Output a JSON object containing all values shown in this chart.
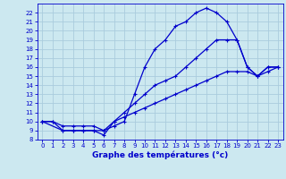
{
  "xlabel": "Graphe des températures (°c)",
  "bg_color": "#cce8f0",
  "grid_color": "#aaccdd",
  "line_color": "#0000cc",
  "xlim": [
    -0.5,
    23.5
  ],
  "ylim": [
    8,
    23
  ],
  "xticks": [
    0,
    1,
    2,
    3,
    4,
    5,
    6,
    7,
    8,
    9,
    10,
    11,
    12,
    13,
    14,
    15,
    16,
    17,
    18,
    19,
    20,
    21,
    22,
    23
  ],
  "yticks": [
    8,
    9,
    10,
    11,
    12,
    13,
    14,
    15,
    16,
    17,
    18,
    19,
    20,
    21,
    22
  ],
  "series1_x": [
    0,
    1,
    2,
    3,
    4,
    5,
    6,
    7,
    8,
    9,
    10,
    11,
    12,
    13,
    14,
    15,
    16,
    17,
    18,
    19,
    20,
    21,
    22,
    23
  ],
  "series1_y": [
    10,
    10,
    9,
    9,
    9,
    9,
    8.5,
    10,
    11,
    12,
    13,
    14,
    14.5,
    15,
    16,
    17,
    18,
    19,
    19,
    19,
    16,
    15,
    15.5,
    16
  ],
  "series2_x": [
    0,
    2,
    3,
    4,
    5,
    6,
    7,
    8,
    9,
    10,
    11,
    12,
    13,
    14,
    15,
    16,
    17,
    18,
    19,
    20,
    21,
    22,
    23
  ],
  "series2_y": [
    10,
    9,
    9,
    9,
    9,
    9,
    9.5,
    10,
    13,
    16,
    18,
    19,
    20.5,
    21,
    22,
    22.5,
    22,
    21,
    19,
    16,
    15,
    16,
    16
  ],
  "series3_x": [
    0,
    1,
    2,
    3,
    4,
    5,
    6,
    7,
    8,
    9,
    10,
    11,
    12,
    13,
    14,
    15,
    16,
    17,
    18,
    19,
    20,
    21,
    22,
    23
  ],
  "series3_y": [
    10,
    10,
    9.5,
    9.5,
    9.5,
    9.5,
    9,
    10,
    10.5,
    11,
    11.5,
    12,
    12.5,
    13,
    13.5,
    14,
    14.5,
    15,
    15.5,
    15.5,
    15.5,
    15,
    16,
    16
  ],
  "marker_series2_x": [
    0,
    2,
    3,
    4,
    5,
    6,
    7,
    8,
    9,
    10,
    11,
    12,
    13,
    14,
    15,
    16,
    17,
    18,
    19,
    20,
    21,
    22,
    23
  ],
  "marker_series2_y": [
    10,
    9,
    9,
    9,
    9,
    9,
    9.5,
    10,
    13,
    16,
    18,
    19,
    20.5,
    21,
    22,
    22.5,
    22,
    21,
    19,
    16,
    15,
    16,
    16
  ]
}
